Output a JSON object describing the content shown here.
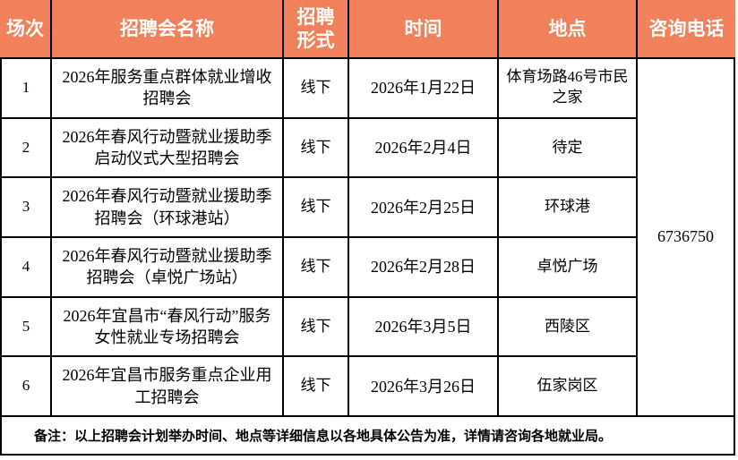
{
  "table": {
    "headers": {
      "session": "场次",
      "name": "招聘会名称",
      "format": "招聘\n形式",
      "time": "时间",
      "location": "地点",
      "phone": "咨询电话"
    },
    "rows": [
      {
        "no": "1",
        "name": "2026年服务重点群体就业增收招聘会",
        "format": "线下",
        "time": "2026年1月22日",
        "location": "体育场路46号市民之家"
      },
      {
        "no": "2",
        "name": "2026年春风行动暨就业援助季启动仪式大型招聘会",
        "format": "线下",
        "time": "2026年2月4日",
        "location": "待定"
      },
      {
        "no": "3",
        "name": "2026年春风行动暨就业援助季招聘会（环球港站）",
        "format": "线下",
        "time": "2026年2月25日",
        "location": "环球港"
      },
      {
        "no": "4",
        "name": "2026年春风行动暨就业援助季招聘会（卓悦广场站）",
        "format": "线下",
        "time": "2026年2月28日",
        "location": "卓悦广场"
      },
      {
        "no": "5",
        "name": "2026年宜昌市“春风行动”服务女性就业专场招聘会",
        "format": "线下",
        "time": "2026年3月5日",
        "location": "西陵区"
      },
      {
        "no": "6",
        "name": "2026年宜昌市服务重点企业用工招聘会",
        "format": "线下",
        "time": "2026年3月26日",
        "location": "伍家岗区"
      }
    ],
    "phone_number": "6736750",
    "note": "备注：以上招聘会计划举办时间、地点等详细信息以各地具体公告为准，详情请咨询各地就业局。"
  },
  "colors": {
    "header_bg": "#F0815A",
    "header_text": "#FFFFFF",
    "border": "#000000",
    "body_bg": "#FFFFFF"
  }
}
